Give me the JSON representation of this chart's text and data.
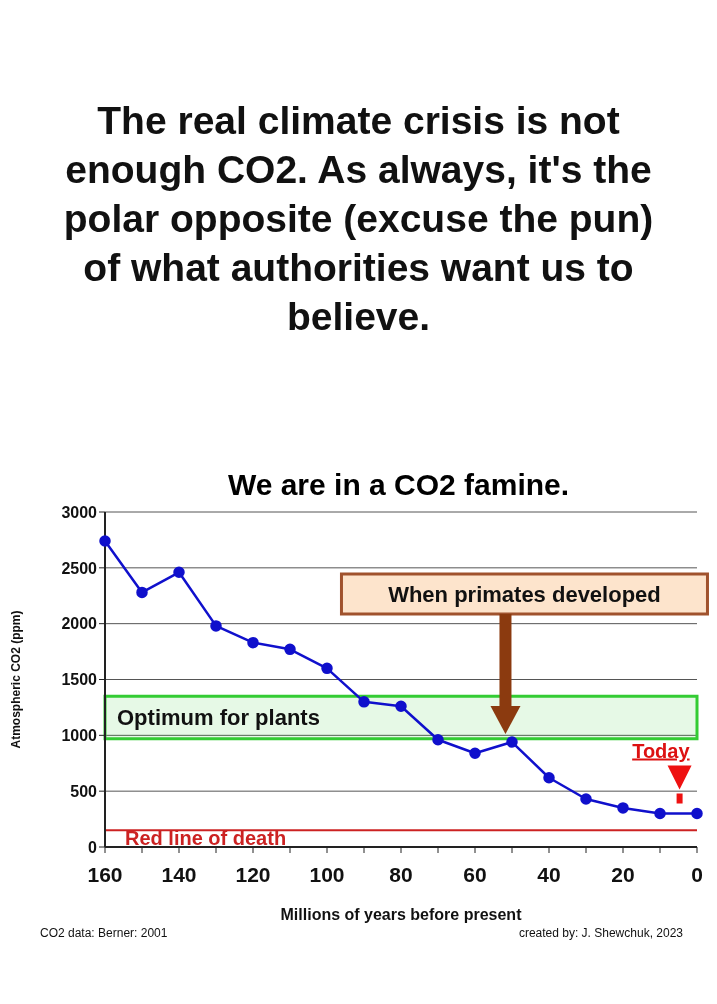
{
  "chart_data": {
    "type": "line",
    "title": "The real climate crisis is not enough CO2. As always, it's the polar opposite (excuse the pun) of what authorities want us to believe.",
    "subtitle": "We are in a CO2 famine.",
    "xlabel": "Millions of years before present",
    "ylabel": "Atmospheric CO2 (ppm)",
    "categories": [
      "160",
      null,
      "140",
      null,
      "120",
      null,
      "100",
      null,
      "80",
      null,
      "60",
      null,
      "40",
      null,
      "20",
      null,
      "0"
    ],
    "series": [
      {
        "color": "#1010cc",
        "values": [
          2740,
          2280,
          2460,
          1980,
          1830,
          1770,
          1600,
          1300,
          1260,
          960,
          840,
          940,
          620,
          430,
          350,
          300,
          300
        ]
      }
    ],
    "ylim": [
      0,
      3000
    ],
    "yticks": [
      0,
      500,
      1000,
      1500,
      2000,
      2500,
      3000
    ],
    "grid": "y",
    "marker": "circle",
    "line_style": "solid",
    "bands": [
      {
        "axis": "y",
        "from": 970,
        "to": 1350,
        "label": "Optimum for plants",
        "color": "#33cc33"
      }
    ],
    "ref_lines": [
      {
        "axis": "y",
        "value": 150,
        "label": "Red line of death",
        "color": "#cc2222"
      }
    ],
    "annotations": [
      "When primates developed",
      {
        "text": "Today",
        "x": "0",
        "y": 300
      },
      "CO2 data: Berner: 2001",
      "created by: J. Shewchuk, 2023"
    ]
  }
}
